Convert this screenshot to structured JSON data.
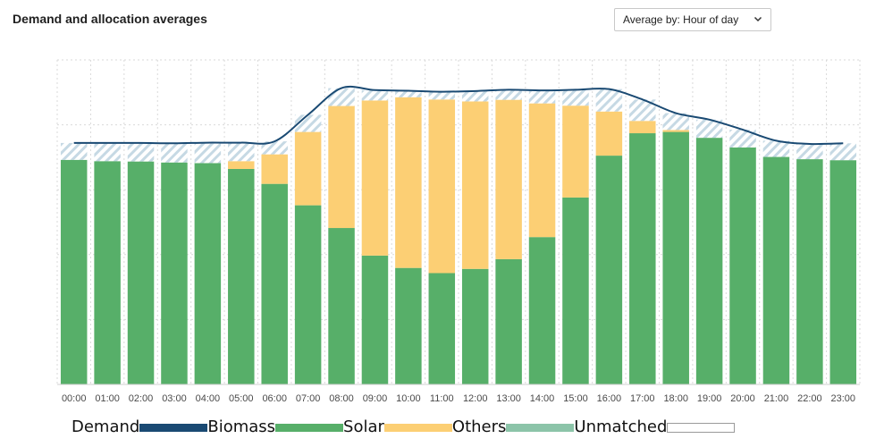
{
  "title": "Demand and allocation averages",
  "average_select": {
    "label": "Average by: Hour of day"
  },
  "colors": {
    "demand": "#1a4a73",
    "biomass": "#57af69",
    "solar": "#fccf74",
    "others": "#8cc4a9",
    "unmatched_stripe": "#c6d9e4",
    "grid": "#d9d9d9"
  },
  "chart_data": {
    "type": "bar",
    "title": "Demand and allocation averages",
    "xlabel": "",
    "ylabel": "",
    "ylim": [
      0,
      100
    ],
    "categories": [
      "00:00",
      "01:00",
      "02:00",
      "03:00",
      "04:00",
      "05:00",
      "06:00",
      "07:00",
      "08:00",
      "09:00",
      "10:00",
      "11:00",
      "12:00",
      "13:00",
      "14:00",
      "15:00",
      "16:00",
      "17:00",
      "18:00",
      "19:00",
      "20:00",
      "21:00",
      "22:00",
      "23:00"
    ],
    "series": [
      {
        "name": "Biomass",
        "stack": true,
        "values": [
          69.2,
          68.8,
          68.7,
          68.4,
          68.2,
          66.4,
          61.8,
          55.2,
          48.2,
          39.7,
          35.9,
          34.3,
          35.6,
          38.6,
          45.4,
          57.6,
          70.5,
          77.4,
          77.8,
          76.0,
          73.0,
          70.1,
          69.4,
          69.1
        ]
      },
      {
        "name": "Solar",
        "stack": true,
        "values": [
          0,
          0,
          0,
          0,
          0,
          2.4,
          9.1,
          22.6,
          37.6,
          47.8,
          52.6,
          53.5,
          51.6,
          49.1,
          41.2,
          28.3,
          13.6,
          3.8,
          0.6,
          0,
          0,
          0,
          0,
          0
        ]
      },
      {
        "name": "Unmatched",
        "stack": true,
        "values": [
          5.2,
          5.6,
          5.7,
          5.9,
          6.3,
          5.7,
          4.0,
          5.3,
          5.5,
          3.2,
          2.0,
          2.4,
          3.2,
          3.1,
          4.0,
          4.9,
          6.9,
          6.6,
          5.2,
          5.6,
          5.5,
          5.0,
          4.7,
          5.2
        ]
      },
      {
        "name": "Demand",
        "type": "line",
        "values": [
          74.4,
          74.4,
          74.4,
          74.3,
          74.5,
          74.5,
          74.9,
          83.1,
          91.3,
          90.7,
          90.5,
          90.2,
          90.4,
          90.8,
          90.6,
          90.8,
          91.0,
          87.8,
          83.6,
          81.6,
          78.5,
          75.1,
          74.1,
          74.3
        ]
      }
    ],
    "legend": [
      "Demand",
      "Biomass",
      "Solar",
      "Others",
      "Unmatched"
    ],
    "legend_position": "bottom-left",
    "grid": true
  }
}
